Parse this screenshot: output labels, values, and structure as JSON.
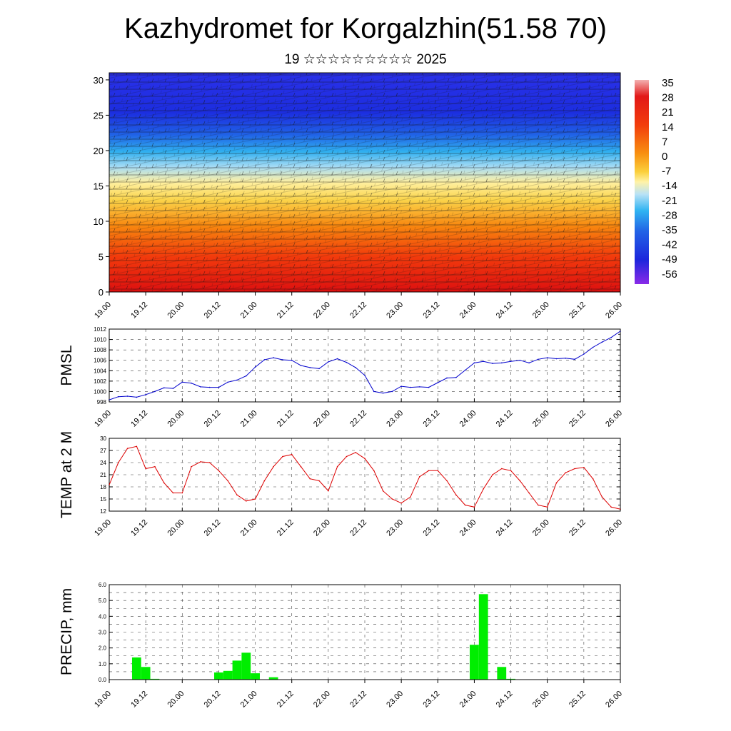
{
  "header": {
    "title": "Kazhydromet for Korgalzhin(51.58 70)",
    "subtitle": "19 ☆☆☆☆☆☆☆☆☆ 2025"
  },
  "time_labels": [
    "19.00",
    "19.12",
    "20.00",
    "20.12",
    "21.00",
    "21.12",
    "22.00",
    "22.12",
    "23.00",
    "23.12",
    "24.00",
    "24.12",
    "25.00",
    "25.12",
    "26.00"
  ],
  "chart_data": [
    {
      "type": "heatmap",
      "title": "",
      "xlabel": "",
      "ylabel": "",
      "x_ticks": [
        "19.00",
        "19.12",
        "20.00",
        "20.12",
        "21.00",
        "21.12",
        "22.00",
        "22.12",
        "23.00",
        "23.12",
        "24.00",
        "24.12",
        "25.00",
        "25.12",
        "26.00"
      ],
      "y_ticks": [
        0,
        5,
        10,
        15,
        20,
        25,
        30
      ],
      "ylim": [
        0,
        31
      ],
      "colorbar_labels": [
        "35",
        "28",
        "21",
        "14",
        "7",
        "0",
        "-7",
        "-14",
        "-21",
        "-28",
        "-35",
        "-42",
        "-49",
        "-56"
      ],
      "overlay": "wind barbs and isolines",
      "description_of_values": "temperature decreasing with height: ~21..28 near surface (red/orange), ~0 at 15, ~-42..-56 above 22"
    },
    {
      "type": "line",
      "ylabel": "PMSL",
      "x_ticks": [
        "19.00",
        "19.12",
        "20.00",
        "20.12",
        "21.00",
        "21.12",
        "22.00",
        "22.12",
        "23.00",
        "23.12",
        "24.00",
        "24.12",
        "25.00",
        "25.12",
        "26.00"
      ],
      "ylim": [
        998,
        1012
      ],
      "y_ticks": [
        998,
        1000,
        1002,
        1004,
        1006,
        1008,
        1010,
        1012
      ],
      "color": "#0000cc",
      "x": [
        0,
        3,
        6,
        9,
        12,
        15,
        18,
        21,
        24,
        27,
        30,
        33,
        36,
        39,
        42,
        45,
        48,
        51,
        54,
        57,
        60,
        63,
        66,
        69,
        72,
        75,
        78,
        81,
        84,
        87,
        90,
        93,
        96,
        99,
        102,
        105,
        108,
        111,
        114,
        117,
        120,
        123,
        126,
        129,
        132,
        135,
        138,
        141,
        144,
        147,
        150,
        153,
        156,
        159,
        162,
        165,
        168
      ],
      "values": [
        998.4,
        999.0,
        999.1,
        998.9,
        999.4,
        1000.0,
        1000.7,
        1000.6,
        1001.8,
        1001.6,
        1000.9,
        1000.8,
        1000.8,
        1001.8,
        1002.2,
        1003.0,
        1004.7,
        1006.1,
        1006.5,
        1006.1,
        1006.0,
        1005.0,
        1004.6,
        1004.4,
        1005.7,
        1006.3,
        1005.6,
        1004.6,
        1003.1,
        1000.0,
        999.7,
        1000.0,
        1001.0,
        1000.8,
        1000.9,
        1000.8,
        1001.7,
        1002.6,
        1002.7,
        1004.1,
        1005.5,
        1005.8,
        1005.4,
        1005.5,
        1005.8,
        1006.0,
        1005.5,
        1006.2,
        1006.5,
        1006.3,
        1006.4,
        1006.2,
        1007.2,
        1008.5,
        1009.5,
        1010.4,
        1011.6
      ]
    },
    {
      "type": "line",
      "ylabel": "TEMP at 2 M",
      "x_ticks": [
        "19.00",
        "19.12",
        "20.00",
        "20.12",
        "21.00",
        "21.12",
        "22.00",
        "22.12",
        "23.00",
        "23.12",
        "24.00",
        "24.12",
        "25.00",
        "25.12",
        "26.00"
      ],
      "ylim": [
        12,
        30
      ],
      "y_ticks": [
        12,
        15,
        18,
        21,
        24,
        27,
        30
      ],
      "color": "#dd0000",
      "x": [
        0,
        3,
        6,
        9,
        12,
        15,
        18,
        21,
        24,
        27,
        30,
        33,
        36,
        39,
        42,
        45,
        48,
        51,
        54,
        57,
        60,
        63,
        66,
        69,
        72,
        75,
        78,
        81,
        84,
        87,
        90,
        93,
        96,
        99,
        102,
        105,
        108,
        111,
        114,
        117,
        120,
        123,
        126,
        129,
        132,
        135,
        138,
        141,
        144,
        147,
        150,
        153,
        156,
        159,
        162,
        165,
        168
      ],
      "values": [
        18.5,
        24.0,
        27.5,
        28.0,
        22.5,
        23.0,
        19.0,
        16.5,
        16.5,
        23.0,
        24.2,
        24.0,
        22.0,
        19.5,
        16.0,
        14.5,
        15.0,
        19.5,
        23.0,
        25.5,
        26.0,
        23.0,
        20.0,
        19.5,
        17.0,
        23.0,
        25.5,
        26.5,
        25.0,
        22.0,
        17.0,
        15.0,
        14.0,
        15.5,
        20.5,
        22.0,
        22.0,
        19.5,
        16.0,
        13.5,
        13.0,
        17.5,
        21.0,
        22.5,
        22.0,
        19.5,
        16.5,
        13.5,
        13.0,
        19.0,
        21.5,
        22.5,
        22.8,
        20.0,
        15.5,
        13.0,
        12.5
      ]
    },
    {
      "type": "bar",
      "ylabel": "PRECIP, mm",
      "x_ticks": [
        "19.00",
        "19.12",
        "20.00",
        "20.12",
        "21.00",
        "21.12",
        "22.00",
        "22.12",
        "23.00",
        "23.12",
        "24.00",
        "24.12",
        "25.00",
        "25.12",
        "26.00"
      ],
      "ylim": [
        0,
        6.0
      ],
      "y_ticks": [
        "0.0",
        "1.0",
        "2.0",
        "3.0",
        "4.0",
        "5.0",
        "6.0"
      ],
      "color": "#00ee00",
      "bars": [
        {
          "x": 9,
          "value": 1.4
        },
        {
          "x": 12,
          "value": 0.8
        },
        {
          "x": 15,
          "value": 0.05
        },
        {
          "x": 36,
          "value": 0.45
        },
        {
          "x": 39,
          "value": 0.55
        },
        {
          "x": 42,
          "value": 1.2
        },
        {
          "x": 45,
          "value": 1.7
        },
        {
          "x": 48,
          "value": 0.4
        },
        {
          "x": 54,
          "value": 0.15
        },
        {
          "x": 120,
          "value": 2.2
        },
        {
          "x": 123,
          "value": 5.4
        },
        {
          "x": 129,
          "value": 0.8
        },
        {
          "x": 132,
          "value": 0.05
        }
      ]
    }
  ],
  "colors": {
    "pmsl_line": "#0000cc",
    "temp_line": "#dd0000",
    "precip_bar": "#00ee00"
  }
}
